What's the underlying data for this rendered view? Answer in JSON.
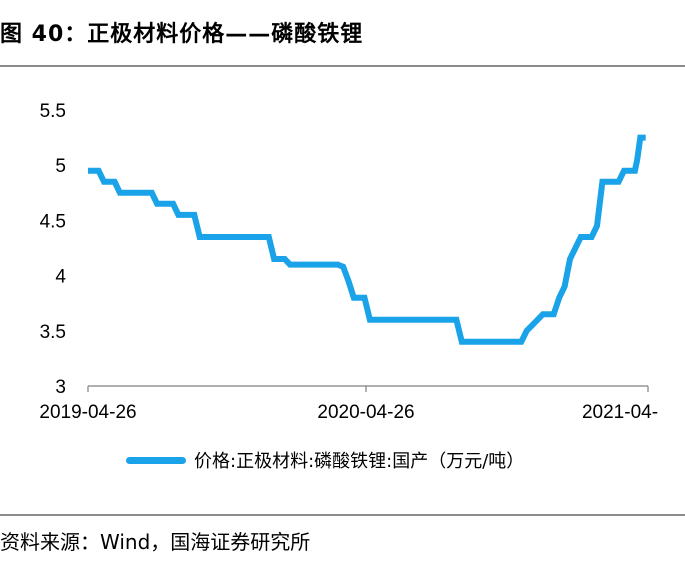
{
  "title": "图 40：正极材料价格——磷酸铁锂",
  "source": "资料来源：Wind，国海证券研究所",
  "colors": {
    "series": "#1aa3e8",
    "axis": "#808080",
    "rule": "#8c8c8c"
  },
  "chart_data": {
    "type": "line",
    "title": "",
    "xlabel": "",
    "ylabel": "",
    "ylim": [
      3,
      5.5
    ],
    "y_ticks": [
      "5.5",
      "5",
      "4.5",
      "4",
      "3.5",
      "3"
    ],
    "x_ticks": [
      "2019-04-26",
      "2020-04-26",
      "2021-04-"
    ],
    "grid": false,
    "legend_position": "bottom",
    "series": [
      {
        "name": "价格:正极材料:磷酸铁锂:国产（万元/吨）",
        "step": true,
        "points": [
          [
            "2019-04-26",
            4.95
          ],
          [
            "2019-05-10",
            4.95
          ],
          [
            "2019-05-17",
            4.85
          ],
          [
            "2019-05-31",
            4.85
          ],
          [
            "2019-06-07",
            4.75
          ],
          [
            "2019-07-19",
            4.75
          ],
          [
            "2019-07-26",
            4.65
          ],
          [
            "2019-08-16",
            4.65
          ],
          [
            "2019-08-23",
            4.55
          ],
          [
            "2019-09-13",
            4.55
          ],
          [
            "2019-09-20",
            4.35
          ],
          [
            "2019-12-20",
            4.35
          ],
          [
            "2019-12-27",
            4.15
          ],
          [
            "2020-01-10",
            4.15
          ],
          [
            "2020-01-17",
            4.1
          ],
          [
            "2020-03-20",
            4.1
          ],
          [
            "2020-03-27",
            4.08
          ],
          [
            "2020-04-03",
            3.95
          ],
          [
            "2020-04-10",
            3.8
          ],
          [
            "2020-04-24",
            3.8
          ],
          [
            "2020-05-01",
            3.6
          ],
          [
            "2020-08-21",
            3.6
          ],
          [
            "2020-08-28",
            3.4
          ],
          [
            "2020-11-13",
            3.4
          ],
          [
            "2020-11-20",
            3.5
          ],
          [
            "2020-11-27",
            3.55
          ],
          [
            "2020-12-04",
            3.6
          ],
          [
            "2020-12-11",
            3.65
          ],
          [
            "2020-12-25",
            3.65
          ],
          [
            "2021-01-01",
            3.8
          ],
          [
            "2021-01-08",
            3.9
          ],
          [
            "2021-01-15",
            4.15
          ],
          [
            "2021-01-22",
            4.25
          ],
          [
            "2021-01-29",
            4.35
          ],
          [
            "2021-02-12",
            4.35
          ],
          [
            "2021-02-19",
            4.45
          ],
          [
            "2021-02-26",
            4.85
          ],
          [
            "2021-03-19",
            4.85
          ],
          [
            "2021-03-26",
            4.95
          ],
          [
            "2021-04-09",
            4.95
          ],
          [
            "2021-04-12",
            5.05
          ],
          [
            "2021-04-16",
            5.25
          ],
          [
            "2021-04-23",
            5.25
          ]
        ]
      }
    ]
  }
}
